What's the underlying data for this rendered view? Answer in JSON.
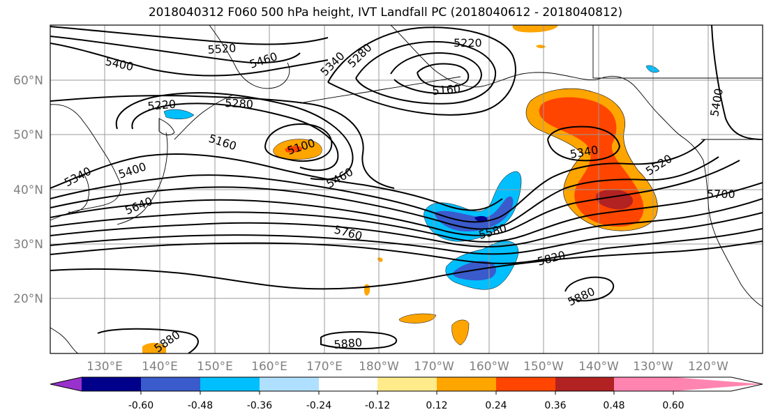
{
  "title": "2018040312 F060 500 hPa height, IVT Landfall PC (2018040612 - 2018040812)",
  "latitudes": [
    "60°N",
    "50°N",
    "40°N",
    "30°N",
    "20°N"
  ],
  "longitudes": [
    "130°E",
    "140°E",
    "150°E",
    "160°E",
    "170°E",
    "180°W",
    "170°W",
    "160°W",
    "150°W",
    "140°W",
    "130°W",
    "120°W"
  ],
  "contour_labels": [
    {
      "id": "c1",
      "text": "5400"
    },
    {
      "id": "c2",
      "text": "5520"
    },
    {
      "id": "c3",
      "text": "5460"
    },
    {
      "id": "c4",
      "text": "5340"
    },
    {
      "id": "c5",
      "text": "5280"
    },
    {
      "id": "c6",
      "text": "5220"
    },
    {
      "id": "c7",
      "text": "5160"
    },
    {
      "id": "c8",
      "text": "5220"
    },
    {
      "id": "c9",
      "text": "5280"
    },
    {
      "id": "c10",
      "text": "5160"
    },
    {
      "id": "c11",
      "text": "5100"
    },
    {
      "id": "c12",
      "text": "5340"
    },
    {
      "id": "c13",
      "text": "5400"
    },
    {
      "id": "c14",
      "text": "5640"
    },
    {
      "id": "c15",
      "text": "5460"
    },
    {
      "id": "c16",
      "text": "5760"
    },
    {
      "id": "c17",
      "text": "5580"
    },
    {
      "id": "c18",
      "text": "5340"
    },
    {
      "id": "c19",
      "text": "5520"
    },
    {
      "id": "c20",
      "text": "5400"
    },
    {
      "id": "c21",
      "text": "5700"
    },
    {
      "id": "c22",
      "text": "5820"
    },
    {
      "id": "c23",
      "text": "5880"
    },
    {
      "id": "c24",
      "text": "5880"
    },
    {
      "id": "c25",
      "text": "5880"
    }
  ],
  "colorbar": {
    "ticks": [
      "-0.60",
      "-0.48",
      "-0.36",
      "-0.24",
      "-0.12",
      "0.12",
      "0.24",
      "0.36",
      "0.48",
      "0.60"
    ],
    "colors": [
      "#9932CC",
      "#00008B",
      "#3A5BCC",
      "#00BFFF",
      "#B0E0FF",
      "#FFFFFF",
      "#FFEB8A",
      "#FFA500",
      "#FF4500",
      "#B22222",
      "#FF85B0"
    ]
  }
}
